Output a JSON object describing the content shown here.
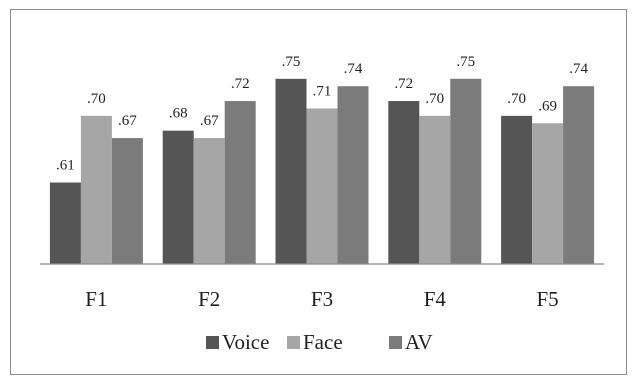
{
  "chart_data": {
    "type": "bar",
    "categories": [
      "F1",
      "F2",
      "F3",
      "F4",
      "F5"
    ],
    "series": [
      {
        "name": "Voice",
        "values": [
          0.61,
          0.68,
          0.75,
          0.72,
          0.7
        ],
        "labels": [
          ".61",
          ".68",
          ".75",
          ".72",
          ".70"
        ],
        "color": "#555555"
      },
      {
        "name": "Face",
        "values": [
          0.7,
          0.67,
          0.71,
          0.7,
          0.69
        ],
        "labels": [
          ".70",
          ".67",
          ".71",
          ".70",
          ".69"
        ],
        "color": "#a6a6a6"
      },
      {
        "name": "AV",
        "values": [
          0.67,
          0.72,
          0.74,
          0.75,
          0.74
        ],
        "labels": [
          ".67",
          ".72",
          ".74",
          ".75",
          ".74"
        ],
        "color": "#7b7b7b"
      }
    ],
    "title": "",
    "xlabel": "",
    "ylabel": "",
    "ylim": [
      0.5,
      0.77
    ],
    "grid": false,
    "legend_position": "bottom"
  }
}
